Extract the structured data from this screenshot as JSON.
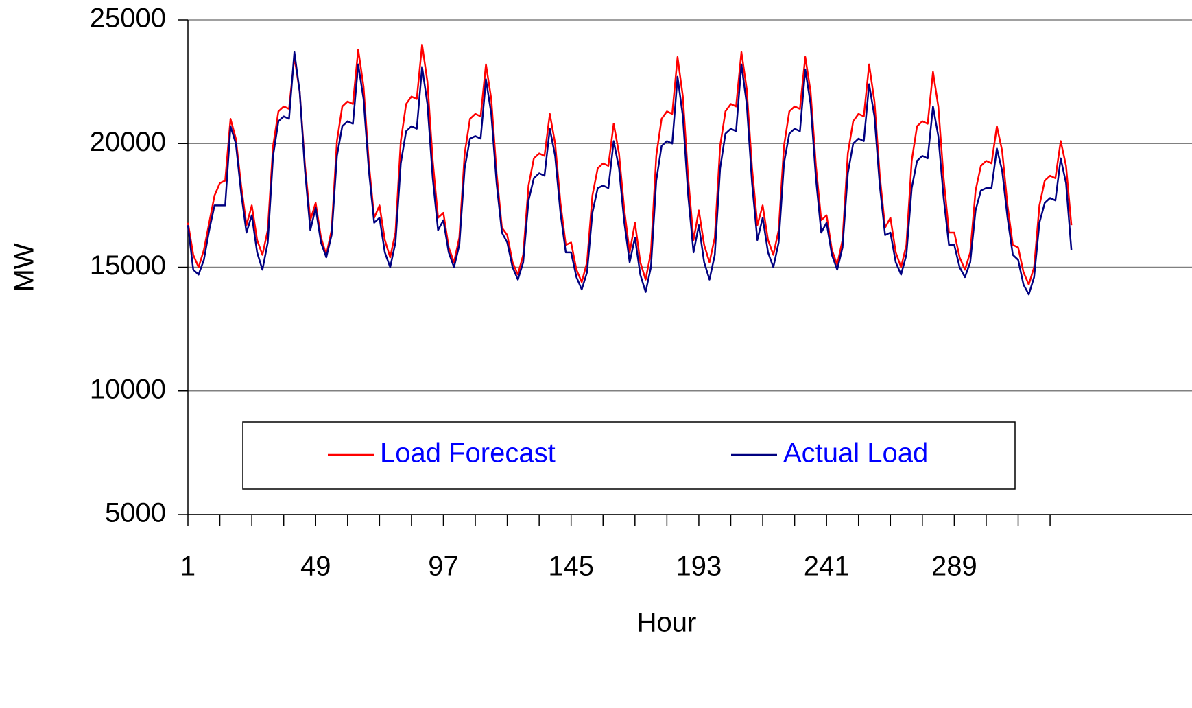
{
  "chart_data": {
    "type": "line",
    "xlabel": "Hour",
    "ylabel": "MW",
    "xlim": [
      1,
      334
    ],
    "ylim": [
      5000,
      25000
    ],
    "xticks": [
      1,
      49,
      97,
      145,
      193,
      241,
      289
    ],
    "xminor_ticks": [
      13,
      25,
      37,
      61,
      73,
      85,
      109,
      121,
      133,
      157,
      169,
      181,
      205,
      217,
      229,
      253,
      265,
      277,
      301,
      313,
      325
    ],
    "yticks": [
      5000,
      10000,
      15000,
      20000,
      25000
    ],
    "grid": true,
    "x": [
      1,
      3,
      5,
      7,
      9,
      11,
      13,
      15,
      17,
      19,
      21,
      23,
      25,
      27,
      29,
      31,
      33,
      35,
      37,
      39,
      41,
      43,
      45,
      47,
      49,
      51,
      53,
      55,
      57,
      59,
      61,
      63,
      65,
      67,
      69,
      71,
      73,
      75,
      77,
      79,
      81,
      83,
      85,
      87,
      89,
      91,
      93,
      95,
      97,
      99,
      101,
      103,
      105,
      107,
      109,
      111,
      113,
      115,
      117,
      119,
      121,
      123,
      125,
      127,
      129,
      131,
      133,
      135,
      137,
      139,
      141,
      143,
      145,
      147,
      149,
      151,
      153,
      155,
      157,
      159,
      161,
      163,
      165,
      167,
      169,
      171,
      173,
      175,
      177,
      179,
      181,
      183,
      185,
      187,
      189,
      191,
      193,
      195,
      197,
      199,
      201,
      203,
      205,
      207,
      209,
      211,
      213,
      215,
      217,
      219,
      221,
      223,
      225,
      227,
      229,
      231,
      233,
      235,
      237,
      239,
      241,
      243,
      245,
      247,
      249,
      251,
      253,
      255,
      257,
      259,
      261,
      263,
      265,
      267,
      269,
      271,
      273,
      275,
      277,
      279,
      281,
      283,
      285,
      287,
      289,
      291,
      293,
      295,
      297,
      299,
      301,
      303,
      305,
      307,
      309,
      311,
      313,
      315,
      317,
      319,
      321,
      323,
      325,
      327,
      329,
      331,
      333
    ],
    "series": [
      {
        "name": "Load Forecast",
        "color": "#ff0000",
        "values": [
          16800,
          15500,
          15000,
          15700,
          16800,
          17900,
          18400,
          18500,
          21000,
          20200,
          18300,
          16700,
          17500,
          16100,
          15500,
          16500,
          19900,
          21300,
          21500,
          21400,
          23500,
          22100,
          19100,
          16900,
          17600,
          16200,
          15500,
          16500,
          20100,
          21500,
          21700,
          21600,
          23800,
          22300,
          19200,
          17000,
          17500,
          16100,
          15400,
          16400,
          20100,
          21600,
          21900,
          21800,
          24000,
          22500,
          19300,
          17000,
          17200,
          15800,
          15200,
          16200,
          19600,
          21000,
          21200,
          21100,
          23200,
          21800,
          18800,
          16600,
          16300,
          15200,
          14700,
          15500,
          18300,
          19400,
          19600,
          19500,
          21200,
          20000,
          17600,
          15900,
          16000,
          14900,
          14400,
          15200,
          17900,
          19000,
          19200,
          19100,
          20800,
          19600,
          17300,
          15600,
          16800,
          15200,
          14500,
          15600,
          19500,
          21000,
          21300,
          21200,
          23500,
          21900,
          18600,
          16100,
          17300,
          15900,
          15200,
          16200,
          19900,
          21300,
          21600,
          21500,
          23700,
          22200,
          19000,
          16700,
          17500,
          16100,
          15500,
          16500,
          19900,
          21300,
          21500,
          21400,
          23500,
          22100,
          19100,
          16900,
          17100,
          15700,
          15100,
          16100,
          19600,
          20900,
          21200,
          21100,
          23200,
          21700,
          18700,
          16600,
          17000,
          15600,
          15000,
          15900,
          19300,
          20700,
          20900,
          20800,
          22900,
          21500,
          18600,
          16400,
          16400,
          15400,
          14900,
          15600,
          18100,
          19100,
          19300,
          19200,
          20700,
          19700,
          17500,
          15900,
          15800,
          14800,
          14300,
          15000,
          17500,
          18500,
          18700,
          18600,
          20100,
          19100,
          16700
        ]
      },
      {
        "name": "Actual Load",
        "color": "#000080",
        "values": [
          16700,
          14900,
          14700,
          15300,
          16500,
          17500,
          17500,
          17500,
          20700,
          20000,
          18000,
          16400,
          17100,
          15600,
          14900,
          16000,
          19500,
          20900,
          21100,
          21000,
          23700,
          22100,
          18900,
          16500,
          17400,
          16000,
          15400,
          16300,
          19500,
          20700,
          20900,
          20800,
          23200,
          21800,
          18900,
          16800,
          17000,
          15600,
          15000,
          16000,
          19200,
          20500,
          20700,
          20600,
          23100,
          21600,
          18600,
          16500,
          16900,
          15600,
          15000,
          15900,
          19000,
          20200,
          20300,
          20200,
          22600,
          21200,
          18400,
          16400,
          16000,
          15000,
          14500,
          15200,
          17700,
          18600,
          18800,
          18700,
          20600,
          19500,
          17200,
          15600,
          15600,
          14600,
          14100,
          14800,
          17200,
          18200,
          18300,
          18200,
          20100,
          19000,
          16800,
          15200,
          16200,
          14700,
          14000,
          15000,
          18500,
          19900,
          20100,
          20000,
          22700,
          21100,
          17900,
          15600,
          16700,
          15200,
          14500,
          15500,
          19000,
          20400,
          20600,
          20500,
          23200,
          21600,
          18400,
          16100,
          17000,
          15600,
          15000,
          16000,
          19200,
          20400,
          20600,
          20500,
          23000,
          21600,
          18600,
          16400,
          16800,
          15500,
          14900,
          15800,
          18800,
          20000,
          20200,
          20100,
          22400,
          21100,
          18300,
          16300,
          16400,
          15200,
          14700,
          15500,
          18200,
          19300,
          19500,
          19400,
          21500,
          20300,
          17800,
          15900,
          15900,
          15000,
          14600,
          15200,
          17300,
          18100,
          18200,
          18200,
          19800,
          18900,
          17000,
          15500,
          15300,
          14300,
          13900,
          14600,
          16800,
          17600,
          17800,
          17700,
          19400,
          18400,
          15700
        ]
      }
    ]
  }
}
